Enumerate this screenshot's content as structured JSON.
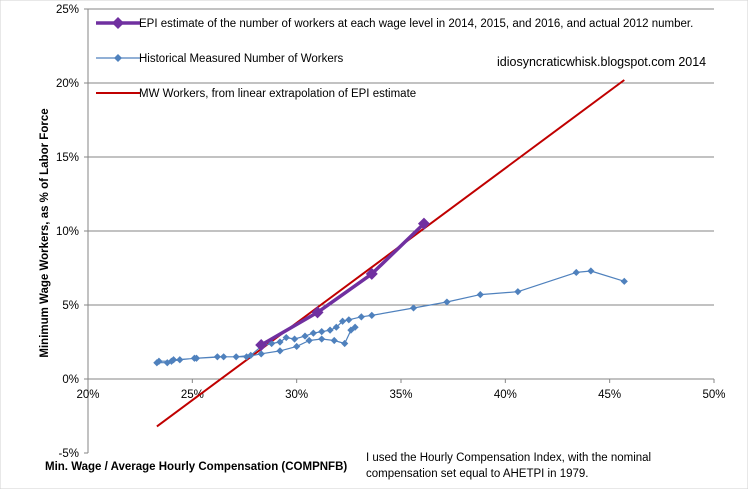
{
  "chart_data": {
    "type": "line",
    "title": "",
    "xlabel": "Min. Wage / Average Hourly Compensation (COMPNFB)",
    "ylabel": "Minimum Wage Workers, as % of Labor Force",
    "xlim": [
      0.2,
      0.5
    ],
    "ylim": [
      -0.05,
      0.25
    ],
    "x_ticks": [
      0.2,
      0.25,
      0.3,
      0.35,
      0.4,
      0.45,
      0.5
    ],
    "x_tick_labels": [
      "20%",
      "25%",
      "30%",
      "35%",
      "40%",
      "45%",
      "50%"
    ],
    "y_ticks": [
      -0.05,
      0.0,
      0.05,
      0.1,
      0.15,
      0.2,
      0.25
    ],
    "y_tick_labels": [
      "-5%",
      "0%",
      "5%",
      "10%",
      "15%",
      "20%",
      "25%"
    ],
    "grid": "horizontal",
    "legend_position": "top-left, inside plot",
    "series": [
      {
        "name": "EPI estimate of the number of workers at each wage level in 2014, 2015, and 2016, and actual 2012 number.",
        "color": "#7030A0",
        "marker": "diamond-large",
        "points": [
          [
            0.283,
            0.023
          ],
          [
            0.31,
            0.045
          ],
          [
            0.336,
            0.071
          ],
          [
            0.361,
            0.105
          ]
        ]
      },
      {
        "name": "Historical Measured Number of Workers",
        "color": "#4F81BD",
        "marker": "diamond-small",
        "points": [
          [
            0.457,
            0.066
          ],
          [
            0.441,
            0.073
          ],
          [
            0.434,
            0.072
          ],
          [
            0.406,
            0.059
          ],
          [
            0.388,
            0.057
          ],
          [
            0.372,
            0.052
          ],
          [
            0.356,
            0.048
          ],
          [
            0.336,
            0.043
          ],
          [
            0.331,
            0.042
          ],
          [
            0.325,
            0.04
          ],
          [
            0.322,
            0.039
          ],
          [
            0.319,
            0.035
          ],
          [
            0.316,
            0.033
          ],
          [
            0.312,
            0.032
          ],
          [
            0.308,
            0.031
          ],
          [
            0.304,
            0.029
          ],
          [
            0.299,
            0.027
          ],
          [
            0.295,
            0.028
          ],
          [
            0.292,
            0.025
          ],
          [
            0.288,
            0.024
          ],
          [
            0.283,
            0.022
          ],
          [
            0.278,
            0.016
          ],
          [
            0.271,
            0.015
          ],
          [
            0.262,
            0.015
          ],
          [
            0.251,
            0.014
          ],
          [
            0.244,
            0.013
          ],
          [
            0.24,
            0.012
          ],
          [
            0.234,
            0.012
          ],
          [
            0.233,
            0.011
          ],
          [
            0.238,
            0.011
          ],
          [
            0.241,
            0.013
          ],
          [
            0.252,
            0.014
          ],
          [
            0.265,
            0.015
          ],
          [
            0.276,
            0.015
          ],
          [
            0.283,
            0.017
          ],
          [
            0.292,
            0.019
          ],
          [
            0.3,
            0.022
          ],
          [
            0.306,
            0.026
          ],
          [
            0.312,
            0.027
          ],
          [
            0.318,
            0.026
          ],
          [
            0.323,
            0.024
          ],
          [
            0.326,
            0.033
          ],
          [
            0.328,
            0.035
          ]
        ]
      },
      {
        "name": "MW Workers, from linear extrapolation of EPI estimate",
        "color": "#C00000",
        "marker": "none",
        "points": [
          [
            0.233,
            -0.032
          ],
          [
            0.457,
            0.202
          ]
        ]
      }
    ],
    "annotations": {
      "credit": "idiosyncraticwhisk.blogspot.com 2014",
      "note_line1": "I used the Hourly Compensation Index, with the nominal",
      "note_line2": "compensation set equal to AHETPI  in 1979."
    }
  }
}
